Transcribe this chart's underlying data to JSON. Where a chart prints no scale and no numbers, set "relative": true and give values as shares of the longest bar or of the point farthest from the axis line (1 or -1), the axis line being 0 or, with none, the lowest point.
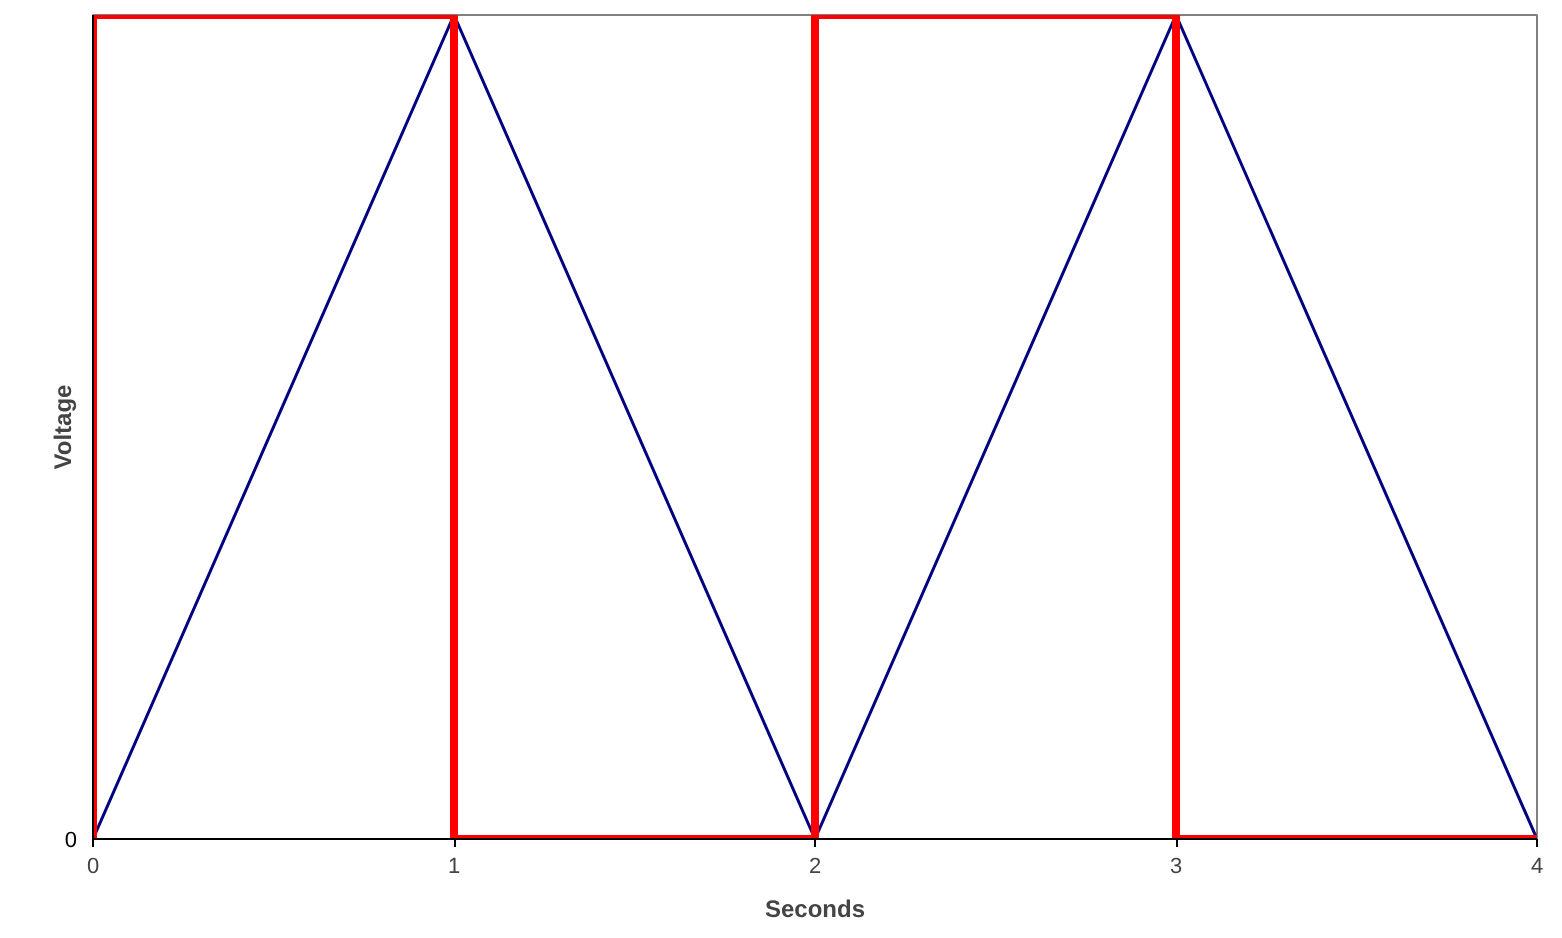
{
  "chart_data": {
    "type": "line",
    "xlabel": "Seconds",
    "ylabel": "Voltage",
    "relative": true,
    "xlim": [
      0,
      4
    ],
    "xticks": [
      0,
      1,
      2,
      3,
      4
    ],
    "annotations": [
      "0"
    ],
    "marker": "none",
    "line_style": "solid",
    "series": [
      {
        "color": "#000080",
        "x": [
          0,
          1,
          2,
          3,
          4
        ],
        "values": [
          0,
          1,
          0,
          1,
          0
        ]
      },
      {
        "color": "#ff0000",
        "x": [
          0,
          0,
          1,
          1,
          2,
          2,
          3,
          3,
          4
        ],
        "values": [
          0,
          1,
          1,
          0,
          0,
          1,
          1,
          0,
          0
        ]
      }
    ]
  }
}
